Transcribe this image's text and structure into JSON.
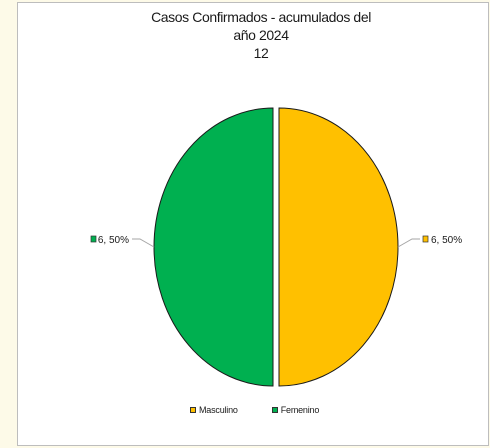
{
  "chart_data": {
    "type": "pie",
    "title_lines": [
      "Casos Confirmados - acumulados del",
      "año 2024",
      "12"
    ],
    "slices": [
      {
        "name": "Masculino",
        "value": 6,
        "percent": 50,
        "label": "6, 50%",
        "color": "#ffc000"
      },
      {
        "name": "Femenino",
        "value": 6,
        "percent": 50,
        "label": "6, 50%",
        "color": "#00b050"
      }
    ],
    "legend": [
      "Masculino",
      "Femenino"
    ],
    "legend_position": "bottom"
  },
  "colors": {
    "masculino": "#ffc000",
    "femenino": "#00b050",
    "leader_line": "#a6a6a6",
    "page_background": "#fdfae8"
  }
}
